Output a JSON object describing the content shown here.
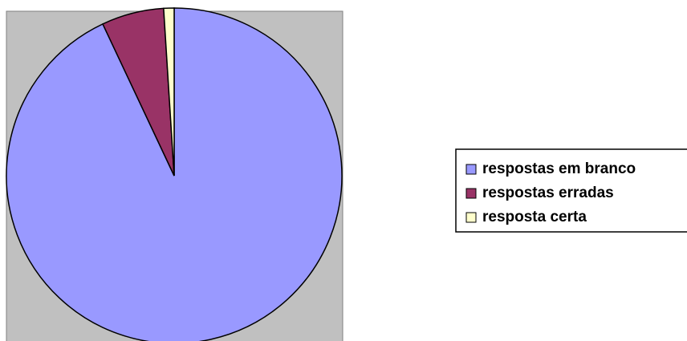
{
  "chart_data": {
    "type": "pie",
    "categories": [
      "respostas em branco",
      "respostas erradas",
      "resposta certa"
    ],
    "values": [
      93,
      6,
      1
    ],
    "colors": [
      "#9999ff",
      "#993366",
      "#ffffcc"
    ]
  }
}
